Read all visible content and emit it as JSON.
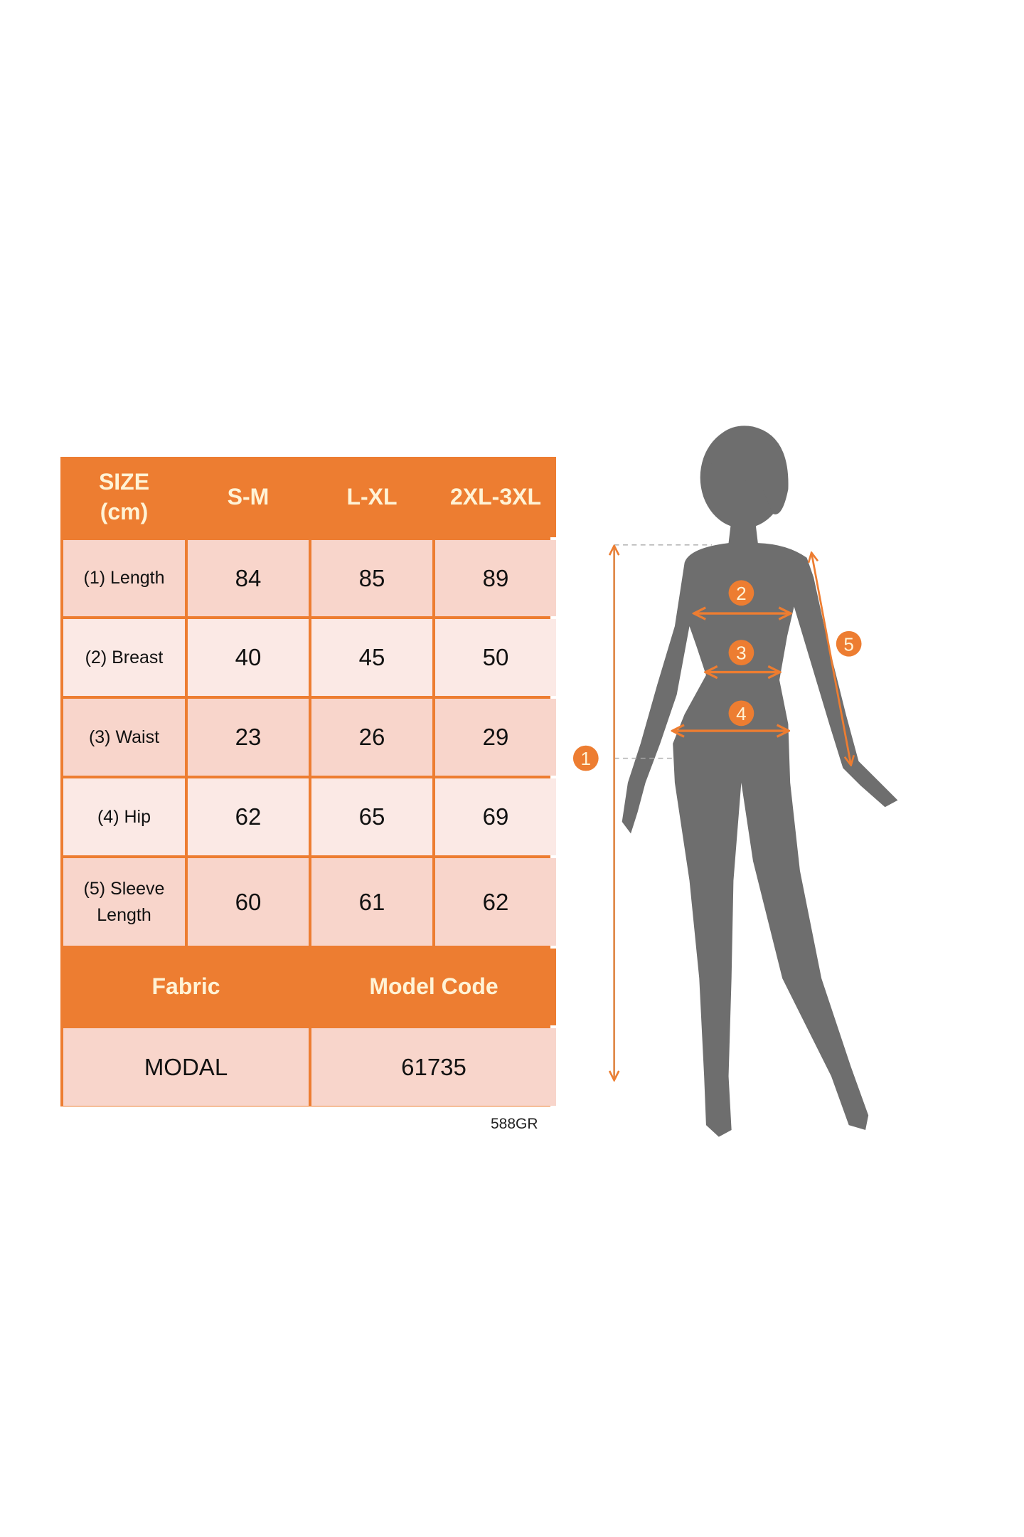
{
  "size_table": {
    "header": {
      "label": "SIZE\n(cm)",
      "sizes": [
        "S-M",
        "L-XL",
        "2XL-3XL"
      ]
    },
    "rows": [
      {
        "label": "(1) Length",
        "values": [
          "84",
          "85",
          "89"
        ]
      },
      {
        "label": "(2) Breast",
        "values": [
          "40",
          "45",
          "50"
        ]
      },
      {
        "label": "(3) Waist",
        "values": [
          "23",
          "26",
          "29"
        ]
      },
      {
        "label": "(4) Hip",
        "values": [
          "62",
          "65",
          "69"
        ]
      },
      {
        "label": "(5) Sleeve Length",
        "values": [
          "60",
          "61",
          "62"
        ]
      }
    ],
    "footer_headers": [
      "Fabric",
      "Model Code"
    ],
    "footer_values": [
      "MODAL",
      "61735"
    ]
  },
  "code": "588GR",
  "figure": {
    "markers": [
      "1",
      "2",
      "3",
      "4",
      "5"
    ]
  },
  "colors": {
    "accent": "#ED7D31",
    "row_dark": "#F8D5CB",
    "row_light": "#FBE9E5",
    "silhouette": "#6E6E6E",
    "header_text": "#FFF3D6"
  }
}
